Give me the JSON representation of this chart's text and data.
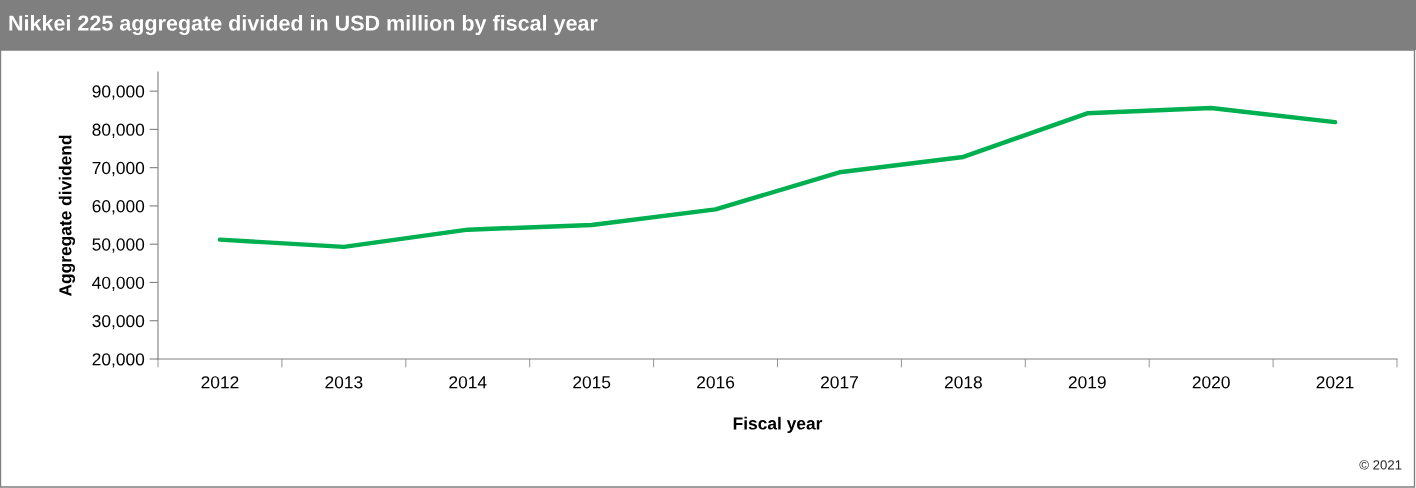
{
  "chart_data": {
    "type": "line",
    "title": "Nikkei 225 aggregate divided in USD million by fiscal year",
    "xlabel": "Fiscal year",
    "ylabel": "Aggregate dividend",
    "categories": [
      "2012",
      "2013",
      "2014",
      "2015",
      "2016",
      "2017",
      "2018",
      "2019",
      "2020",
      "2021"
    ],
    "series": [
      {
        "color": "#00b050",
        "values": [
          51200,
          49300,
          53800,
          55000,
          59100,
          68800,
          72800,
          84200,
          85600,
          81900
        ]
      }
    ],
    "ylim": [
      20000,
      95000
    ],
    "yticks": [
      {
        "value": 20000,
        "label": "20,000"
      },
      {
        "value": 30000,
        "label": "30,000"
      },
      {
        "value": 40000,
        "label": "40,000"
      },
      {
        "value": 50000,
        "label": "50,000"
      },
      {
        "value": 60000,
        "label": "60,000"
      },
      {
        "value": 70000,
        "label": "70,000"
      },
      {
        "value": 80000,
        "label": "80,000"
      },
      {
        "value": 90000,
        "label": "90,000"
      }
    ],
    "annotations": [
      "© 2021"
    ],
    "grid": false,
    "marker": "none",
    "line_style": "solid"
  }
}
